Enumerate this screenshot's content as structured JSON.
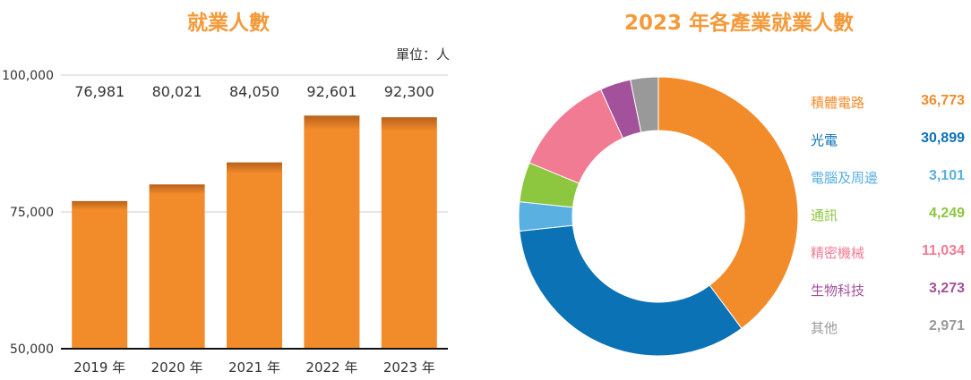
{
  "chart_data": [
    {
      "type": "bar",
      "title": "就業人數",
      "unit_label": "單位：人",
      "categories": [
        "2019 年",
        "2020 年",
        "2021 年",
        "2022 年",
        "2023 年"
      ],
      "values": [
        76981,
        80021,
        84050,
        92601,
        92300
      ],
      "value_labels": [
        "76,981",
        "80,021",
        "84,050",
        "92,601",
        "92,300"
      ],
      "ylim": [
        50000,
        100000
      ],
      "yticks": [
        50000,
        75000,
        100000
      ],
      "ytick_labels": [
        "50,000",
        "75,000",
        "100,000"
      ],
      "grid": true,
      "color": "#f28b2a"
    },
    {
      "type": "pie",
      "style": "donut",
      "title": "2023 年各產業就業人數",
      "legend_position": "right",
      "slices": [
        {
          "label": "積體電路",
          "value": 36773,
          "value_label": "36,773",
          "color": "#f28b2a"
        },
        {
          "label": "光電",
          "value": 30899,
          "value_label": "30,899",
          "color": "#0b72b5"
        },
        {
          "label": "電腦及周邊",
          "value": 3101,
          "value_label": "3,101",
          "color": "#5ab0e0"
        },
        {
          "label": "通訊",
          "value": 4249,
          "value_label": "4,249",
          "color": "#8dc63f"
        },
        {
          "label": "精密機械",
          "value": 11034,
          "value_label": "11,034",
          "color": "#f27b94"
        },
        {
          "label": "生物科技",
          "value": 3273,
          "value_label": "3,273",
          "color": "#a3519a"
        },
        {
          "label": "其他",
          "value": 2971,
          "value_label": "2,971",
          "color": "#999999"
        }
      ]
    }
  ]
}
